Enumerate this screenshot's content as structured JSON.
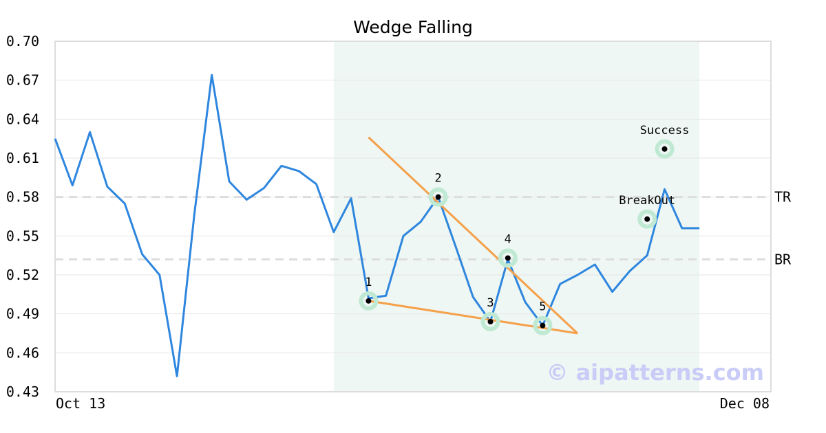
{
  "colors": {
    "price_line": "#2e86de",
    "wedge_line": "#f5a04a",
    "highlight": "#eef7f3",
    "marker_ring": "#bfe9d3",
    "grid": "#e6e6e6",
    "level": "#dddddd",
    "watermark": "#c9ccf7"
  },
  "chart_data": {
    "type": "line",
    "title": "Wedge Falling",
    "xlabel": "",
    "ylabel": "",
    "ylim": [
      0.43,
      0.7
    ],
    "yticks": [
      "0.70",
      "0.67",
      "0.64",
      "0.61",
      "0.58",
      "0.55",
      "0.52",
      "0.49",
      "0.46",
      "0.43"
    ],
    "xtick_labels": [
      "Oct 13",
      "Dec 08"
    ],
    "grid": true,
    "highlight_range": [
      16,
      37
    ],
    "series": [
      {
        "values": [
          0.625,
          0.589,
          0.63,
          0.588,
          0.575,
          0.536,
          0.52,
          0.442,
          0.567,
          0.674,
          0.592,
          0.578,
          0.587,
          0.604,
          0.6,
          0.59,
          0.553,
          0.579,
          0.502,
          0.504,
          0.55,
          0.561,
          0.58,
          0.542,
          0.503,
          0.484,
          0.532,
          0.499,
          0.481,
          0.513,
          0.52,
          0.528,
          0.507,
          0.523,
          0.535,
          0.586,
          0.556,
          0.556
        ]
      }
    ],
    "levels": [
      {
        "label": "TR",
        "value": 0.58
      },
      {
        "label": "BR",
        "value": 0.532
      }
    ],
    "wedge_lines": [
      {
        "from": [
          18,
          0.626
        ],
        "to": [
          30,
          0.475
        ]
      },
      {
        "from": [
          18,
          0.5
        ],
        "to": [
          30,
          0.475
        ]
      }
    ],
    "points": [
      {
        "label": "1",
        "x": 18,
        "y": 0.5
      },
      {
        "label": "2",
        "x": 22,
        "y": 0.58
      },
      {
        "label": "3",
        "x": 25,
        "y": 0.484
      },
      {
        "label": "4",
        "x": 26,
        "y": 0.533
      },
      {
        "label": "5",
        "x": 28,
        "y": 0.481
      },
      {
        "label": "BreakOut",
        "x": 34,
        "y": 0.563
      },
      {
        "label": "Success",
        "x": 35,
        "y": 0.617
      }
    ],
    "watermark": "© aipatterns.com"
  }
}
